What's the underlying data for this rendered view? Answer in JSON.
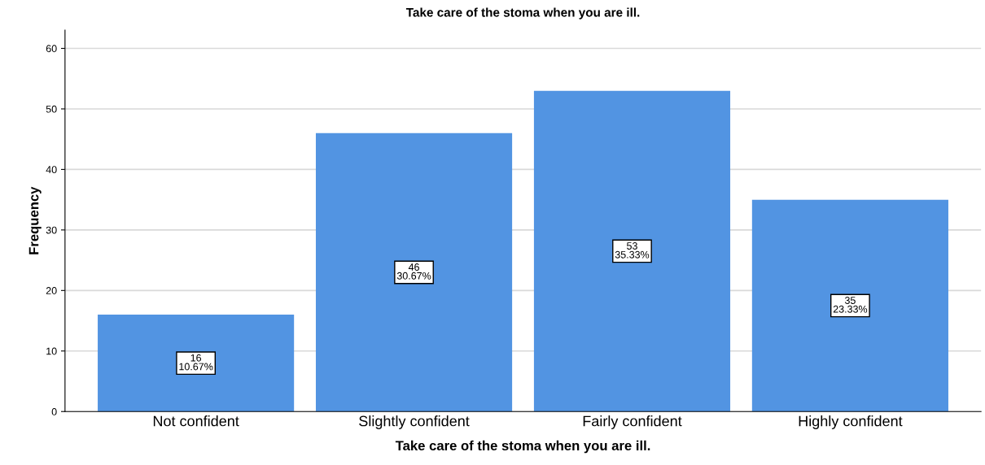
{
  "chart_data": {
    "type": "bar",
    "title": "Take care of the stoma when you are ill.",
    "xlabel": "Take care of the stoma when you are ill.",
    "ylabel": "Frequency",
    "categories": [
      "Not confident",
      "Slightly confident",
      "Fairly confident",
      "Highly confident"
    ],
    "values": [
      16,
      46,
      53,
      35
    ],
    "color": "#5294e2",
    "value_labels": [
      "16\n10.67%",
      "46\n30.67%",
      "53\n35.33%",
      "35\n23.33%"
    ],
    "ylim": [
      0,
      63
    ],
    "yticks": [
      0,
      10,
      20,
      30,
      40,
      50,
      60
    ],
    "grid": "y",
    "legend": false
  }
}
